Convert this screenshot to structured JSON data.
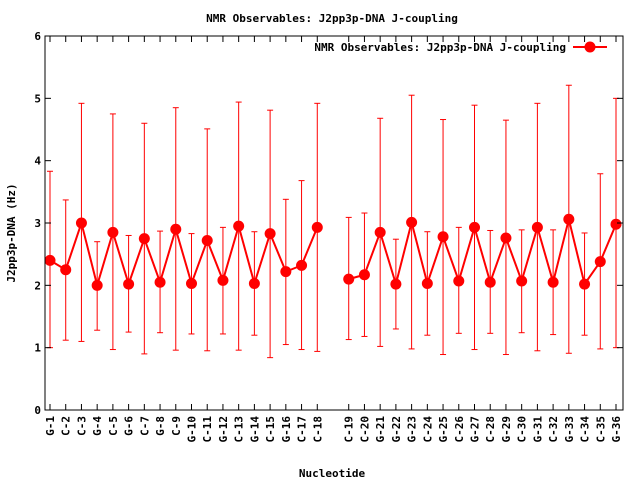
{
  "chart_data": {
    "type": "line",
    "title": "NMR Observables: J2pp3p-DNA J-coupling",
    "xlabel": "Nucleotide",
    "ylabel": "J2pp3p-DNA (Hz)",
    "ylim": [
      0,
      6
    ],
    "yticks": [
      "0",
      "1",
      "2",
      "3",
      "4",
      "5",
      "6"
    ],
    "grid": false,
    "legend_position": "top-right",
    "series": [
      {
        "name": "NMR Observables: J2pp3p-DNA J-coupling",
        "color": "#ff0000",
        "segments": [
          {
            "categories": [
              "G-1",
              "C-2",
              "C-3",
              "G-4",
              "C-5",
              "G-6",
              "C-7",
              "G-8",
              "C-9",
              "G-10",
              "C-11",
              "G-12",
              "C-13",
              "G-14",
              "C-15",
              "G-16",
              "C-17",
              "C-18"
            ],
            "values": [
              2.4,
              2.25,
              3.0,
              2.0,
              2.85,
              2.02,
              2.75,
              2.05,
              2.9,
              2.03,
              2.72,
              2.08,
              2.95,
              2.03,
              2.83,
              2.22,
              2.32,
              2.93
            ],
            "err_low": [
              1.0,
              1.12,
              1.1,
              1.28,
              0.97,
              1.25,
              0.9,
              1.24,
              0.96,
              1.22,
              0.95,
              1.22,
              0.96,
              1.2,
              0.84,
              1.05,
              0.97,
              0.94
            ],
            "err_high": [
              3.83,
              3.37,
              4.92,
              2.7,
              4.75,
              2.8,
              4.6,
              2.87,
              4.85,
              2.83,
              4.51,
              2.93,
              4.94,
              2.86,
              4.81,
              3.38,
              3.68,
              4.92
            ]
          },
          {
            "categories": [
              "C-19",
              "C-20",
              "G-21",
              "G-22",
              "G-23",
              "C-24",
              "G-25",
              "C-26",
              "G-27",
              "C-28",
              "G-29",
              "C-30",
              "G-31",
              "C-32",
              "G-33",
              "C-34",
              "C-35",
              "G-36"
            ],
            "values": [
              2.1,
              2.17,
              2.85,
              2.02,
              3.01,
              2.03,
              2.78,
              2.07,
              2.93,
              2.05,
              2.76,
              2.07,
              2.93,
              2.05,
              3.06,
              2.02,
              2.38,
              2.98
            ],
            "err_low": [
              1.13,
              1.18,
              1.02,
              1.3,
              0.98,
              1.2,
              0.89,
              1.23,
              0.97,
              1.23,
              0.89,
              1.24,
              0.95,
              1.21,
              0.91,
              1.2,
              0.98,
              1.0
            ],
            "err_high": [
              3.09,
              3.16,
              4.68,
              2.74,
              5.05,
              2.86,
              4.66,
              2.93,
              4.89,
              2.88,
              4.65,
              2.89,
              4.92,
              2.89,
              5.21,
              2.84,
              3.79,
              5.0
            ]
          }
        ]
      }
    ]
  }
}
